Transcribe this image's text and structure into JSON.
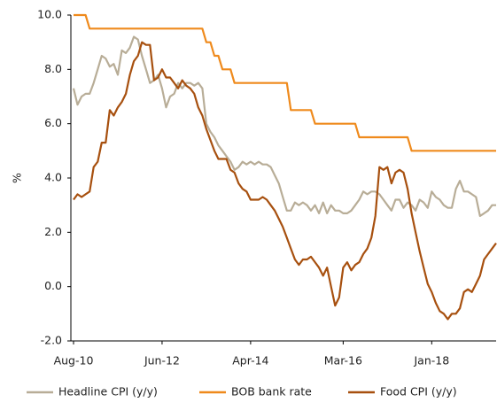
{
  "chart_data": {
    "type": "line",
    "y_label": "%",
    "categories": [
      "Aug-10",
      null,
      null,
      null,
      null,
      null,
      null,
      null,
      null,
      null,
      null,
      null,
      null,
      null,
      null,
      null,
      null,
      null,
      null,
      null,
      null,
      null,
      "Jun-12",
      null,
      null,
      null,
      null,
      null,
      null,
      null,
      null,
      null,
      null,
      null,
      null,
      null,
      null,
      null,
      null,
      null,
      null,
      null,
      null,
      null,
      "Apr-14",
      null,
      null,
      null,
      null,
      null,
      null,
      null,
      null,
      null,
      null,
      null,
      null,
      null,
      null,
      null,
      null,
      null,
      null,
      null,
      null,
      null,
      null,
      "Mar-16",
      null,
      null,
      null,
      null,
      null,
      null,
      null,
      null,
      null,
      null,
      null,
      null,
      null,
      null,
      null,
      null,
      null,
      null,
      null,
      null,
      null,
      "Jan-18",
      null,
      null,
      null,
      null,
      null,
      null,
      null,
      null,
      null,
      null,
      null,
      null,
      null,
      null,
      null,
      null
    ],
    "series": [
      {
        "name": "Headline CPI (y/y)",
        "color": "#b8ad97",
        "values": [
          7.3,
          6.7,
          7.0,
          7.1,
          7.1,
          7.5,
          8.0,
          8.5,
          8.4,
          8.1,
          8.2,
          7.8,
          8.7,
          8.6,
          8.8,
          9.2,
          9.1,
          8.5,
          8.0,
          7.5,
          7.6,
          7.8,
          7.3,
          6.6,
          7.0,
          7.1,
          7.5,
          7.3,
          7.5,
          7.5,
          7.4,
          7.5,
          7.3,
          6.0,
          5.7,
          5.5,
          5.2,
          5.0,
          4.8,
          4.6,
          4.3,
          4.4,
          4.6,
          4.5,
          4.6,
          4.5,
          4.6,
          4.5,
          4.5,
          4.4,
          4.1,
          3.8,
          3.3,
          2.8,
          2.8,
          3.1,
          3.0,
          3.1,
          3.0,
          2.8,
          3.0,
          2.7,
          3.1,
          2.7,
          3.0,
          2.8,
          2.8,
          2.7,
          2.7,
          2.8,
          3.0,
          3.2,
          3.5,
          3.4,
          3.5,
          3.5,
          3.4,
          3.2,
          3.0,
          2.8,
          3.2,
          3.2,
          2.9,
          3.1,
          3.0,
          2.8,
          3.2,
          3.1,
          2.9,
          3.5,
          3.3,
          3.2,
          3.0,
          2.9,
          2.9,
          3.6,
          3.9,
          3.5,
          3.5,
          3.4,
          3.3,
          2.6,
          2.7,
          2.8,
          3.0,
          3.0
        ]
      },
      {
        "name": "BOB bank rate",
        "color": "#ef8a1c",
        "values": [
          10,
          10,
          10,
          10,
          9.5,
          9.5,
          9.5,
          9.5,
          9.5,
          9.5,
          9.5,
          9.5,
          9.5,
          9.5,
          9.5,
          9.5,
          9.5,
          9.5,
          9.5,
          9.5,
          9.5,
          9.5,
          9.5,
          9.5,
          9.5,
          9.5,
          9.5,
          9.5,
          9.5,
          9.5,
          9.5,
          9.5,
          9.5,
          9.0,
          9.0,
          8.5,
          8.5,
          8.0,
          8.0,
          8.0,
          7.5,
          7.5,
          7.5,
          7.5,
          7.5,
          7.5,
          7.5,
          7.5,
          7.5,
          7.5,
          7.5,
          7.5,
          7.5,
          7.5,
          6.5,
          6.5,
          6.5,
          6.5,
          6.5,
          6.5,
          6.0,
          6.0,
          6.0,
          6.0,
          6.0,
          6.0,
          6.0,
          6.0,
          6.0,
          6.0,
          6.0,
          5.5,
          5.5,
          5.5,
          5.5,
          5.5,
          5.5,
          5.5,
          5.5,
          5.5,
          5.5,
          5.5,
          5.5,
          5.5,
          5,
          5,
          5,
          5,
          5,
          5,
          5,
          5,
          5,
          5,
          5,
          5,
          5,
          5,
          5,
          5,
          5,
          5,
          5,
          5,
          5,
          5
        ]
      },
      {
        "name": "Food CPI (y/y)",
        "color": "#a7500f",
        "values": [
          3.2,
          3.4,
          3.3,
          3.4,
          3.5,
          4.4,
          4.6,
          5.3,
          5.3,
          6.5,
          6.3,
          6.6,
          6.8,
          7.1,
          7.8,
          8.3,
          8.5,
          9.0,
          8.9,
          8.9,
          7.6,
          7.7,
          8.0,
          7.7,
          7.7,
          7.5,
          7.3,
          7.6,
          7.4,
          7.3,
          7.1,
          6.6,
          6.3,
          5.8,
          5.4,
          5.0,
          4.7,
          4.7,
          4.7,
          4.3,
          4.2,
          3.8,
          3.6,
          3.5,
          3.2,
          3.2,
          3.2,
          3.3,
          3.2,
          3.0,
          2.8,
          2.5,
          2.2,
          1.8,
          1.4,
          1.0,
          0.8,
          1.0,
          1.0,
          1.1,
          0.9,
          0.7,
          0.4,
          0.7,
          0.0,
          -0.7,
          -0.4,
          0.7,
          0.9,
          0.6,
          0.8,
          0.9,
          1.2,
          1.4,
          1.8,
          2.6,
          4.4,
          4.3,
          4.4,
          3.8,
          4.2,
          4.3,
          4.2,
          3.6,
          2.7,
          2.0,
          1.3,
          0.7,
          0.1,
          -0.2,
          -0.6,
          -0.9,
          -1.0,
          -1.2,
          -1.0,
          -1.0,
          -0.8,
          -0.2,
          -0.1,
          -0.2,
          0.1,
          0.4,
          1.0,
          1.2,
          1.4,
          1.6
        ]
      }
    ],
    "ylim": [
      -2,
      10
    ],
    "yticks": [
      {
        "value": -2,
        "label": "-2.0"
      },
      {
        "value": 0,
        "label": "0.0"
      },
      {
        "value": 2,
        "label": "2.0"
      },
      {
        "value": 4,
        "label": "4.0"
      },
      {
        "value": 6,
        "label": "6.0"
      },
      {
        "value": 8,
        "label": "8.0"
      },
      {
        "value": 10,
        "label": "10.0"
      }
    ],
    "grid": false,
    "legend": "bottom"
  }
}
